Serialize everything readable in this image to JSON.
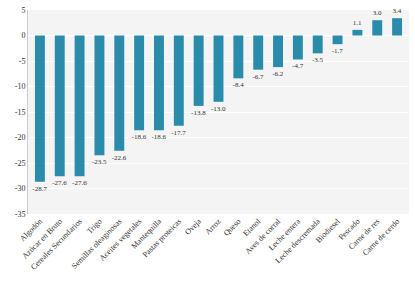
{
  "chart_data": {
    "type": "bar",
    "categories": [
      "Algodón",
      "Azúcar en Bruto",
      "Cereales Secundarios",
      "Trigo",
      "Semillas oleaginosas",
      "Aceites vegetales",
      "Mantequilla",
      "Pastas proteicas",
      "Oveja",
      "Arroz",
      "Queso",
      "Etanol",
      "Aves de corral",
      "Leche entera",
      "Leche descremada",
      "Biodiesel",
      "Pescado",
      "Carne de res",
      "Carne de cerdo"
    ],
    "values": [
      -28.7,
      -27.6,
      -27.6,
      -23.5,
      -22.6,
      -18.6,
      -18.6,
      -17.7,
      -13.8,
      -13.0,
      -8.4,
      -6.7,
      -6.2,
      -4.7,
      -3.5,
      -1.7,
      1.1,
      3.0,
      3.4
    ],
    "value_labels": [
      "-28.7",
      "-27.6",
      "-27.6",
      "-23.5",
      "-22.6",
      "-18.6",
      "-18.6",
      "-17.7",
      "-13.8",
      "-13.0",
      "-8.4",
      "-6.7",
      "-6.2",
      "-4.7",
      "-3.5",
      "-1.7",
      "1.1",
      "3.0",
      "3.4"
    ],
    "color": "#2a8bab",
    "ylim": [
      -35,
      5
    ],
    "yticks": [
      -35,
      -30,
      -25,
      -20,
      -15,
      -10,
      -5,
      0,
      5
    ],
    "grid": true,
    "data_labels": true
  }
}
